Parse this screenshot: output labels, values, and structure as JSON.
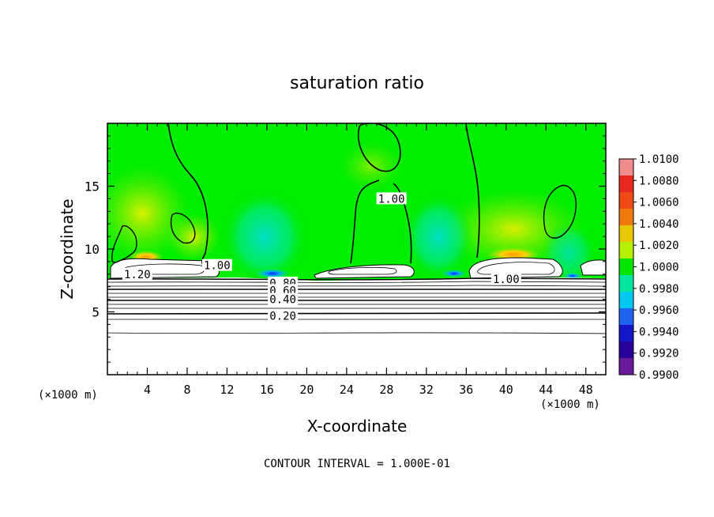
{
  "chart_data": {
    "type": "heatmap",
    "title": "saturation ratio",
    "xlabel": "X-coordinate",
    "ylabel": "Z-coordinate",
    "x_unit_left": "(×1000 m)",
    "x_unit_right": "(×1000 m)",
    "xlim": [
      0,
      50
    ],
    "ylim": [
      0,
      20
    ],
    "x_ticks": [
      4,
      8,
      12,
      16,
      20,
      24,
      28,
      32,
      36,
      40,
      44,
      48
    ],
    "y_ticks": [
      5,
      10,
      15
    ],
    "footer": "CONTOUR INTERVAL = 1.000E-01",
    "colorbar": {
      "labels": [
        "1.0100",
        "1.0080",
        "1.0060",
        "1.0040",
        "1.0020",
        "1.0000",
        "0.9980",
        "0.9960",
        "0.9940",
        "0.9920",
        "0.9900"
      ],
      "colors": [
        "#f08c8c",
        "#e8281e",
        "#f04a14",
        "#f07a10",
        "#e8c800",
        "#b4f000",
        "#00e600",
        "#00e6a0",
        "#00c8f0",
        "#1e64f0",
        "#1414c8",
        "#28009a",
        "#6a1a9a"
      ]
    },
    "contour_labels": [
      {
        "text": "1.20",
        "x": 3.0,
        "y": 8.0
      },
      {
        "text": "1.00",
        "x": 11.0,
        "y": 8.7
      },
      {
        "text": "0.80",
        "x": 17.6,
        "y": 7.3
      },
      {
        "text": "0.60",
        "x": 17.6,
        "y": 6.7
      },
      {
        "text": "0.40",
        "x": 17.6,
        "y": 6.0
      },
      {
        "text": "0.20",
        "x": 17.6,
        "y": 4.7
      },
      {
        "text": "1.00",
        "x": 28.5,
        "y": 14.0
      },
      {
        "text": "1.00",
        "x": 40.0,
        "y": 7.6
      }
    ]
  }
}
